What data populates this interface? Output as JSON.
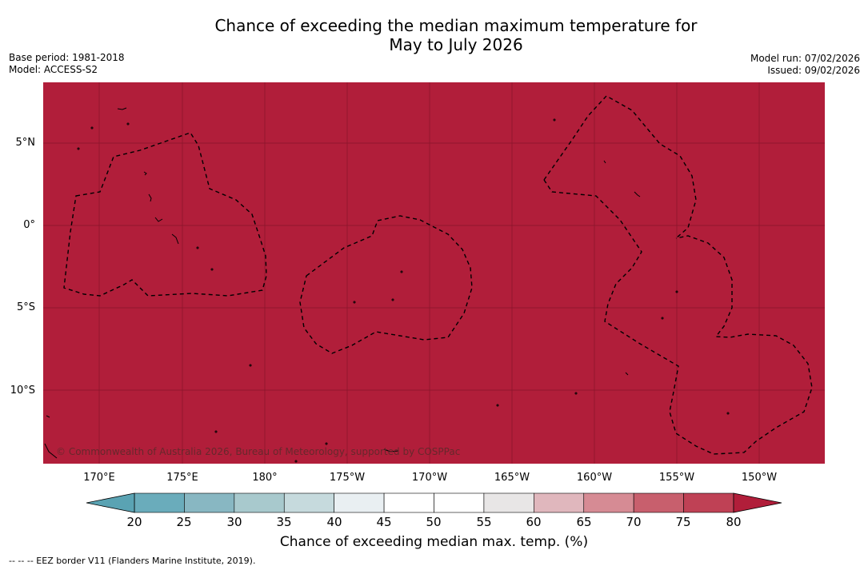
{
  "title": {
    "line1": "Chance of exceeding the median maximum temperature for",
    "line2": "May to July 2026"
  },
  "meta": {
    "base_period": "Base period: 1981-2018",
    "model": "Model: ACCESS-S2",
    "model_run": "Model run: 07/02/2026",
    "issued": "Issued: 09/02/2026"
  },
  "map": {
    "fill_color": "#b11e3a",
    "value_percent": 80,
    "lat_ticks": [
      "5°N",
      "0°",
      "5°S",
      "10°S"
    ],
    "lon_ticks": [
      "170°E",
      "175°E",
      "180°",
      "175°W",
      "170°W",
      "165°W",
      "160°W",
      "155°W",
      "150°W"
    ],
    "copyright": "© Commonwealth of Australia 2026, Bureau of Meteorology, supported by COSPPac"
  },
  "colorbar": {
    "labels": [
      "20",
      "25",
      "30",
      "35",
      "40",
      "45",
      "50",
      "55",
      "60",
      "65",
      "70",
      "75",
      "80"
    ],
    "colors": [
      "#6aacbb",
      "#88b7c2",
      "#a8c9cd",
      "#c6dadd",
      "#e9eff2",
      "#ffffff",
      "#ffffff",
      "#e8e6e6",
      "#e0b7bd",
      "#d68b94",
      "#c85f6d",
      "#bf4155"
    ],
    "under_color": "#5aa3b3",
    "over_color": "#b11e3a",
    "title": "Chance of exceeding median max. temp. (%)"
  },
  "footnote": "--  --  -- EEZ border V11 (Flanders Marine Institute, 2019)."
}
